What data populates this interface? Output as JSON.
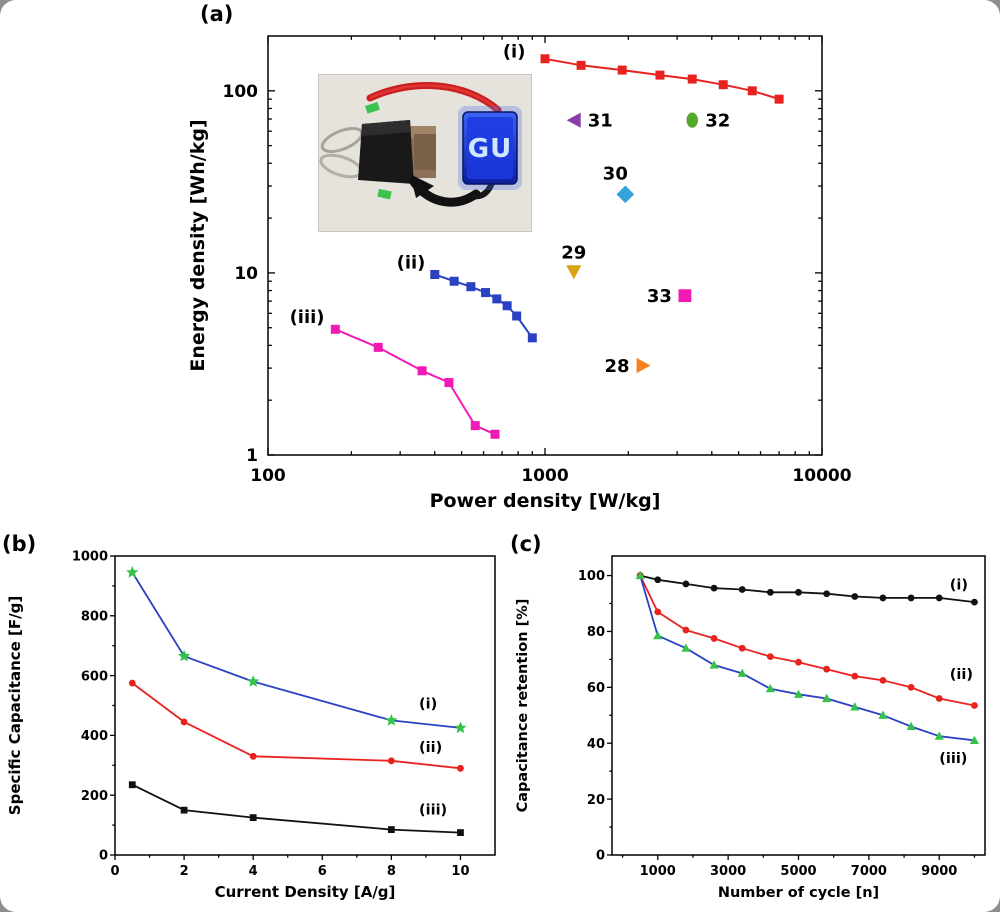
{
  "figure": {
    "background": "#ffffff",
    "panel_labels": {
      "a": "(a)",
      "b": "(b)",
      "c": "(c)"
    }
  },
  "inset": {
    "led_text": "GU"
  },
  "chart_data": [
    {
      "id": "a",
      "type": "line",
      "x_scale": "log",
      "y_scale": "log",
      "xlabel": "Power density [W/kg]",
      "ylabel": "Energy density [Wh/kg]",
      "xlim": [
        100,
        10000
      ],
      "ylim": [
        1,
        200
      ],
      "x_ticks": [
        100,
        1000,
        10000
      ],
      "y_ticks": [
        1,
        10,
        100
      ],
      "grid": false,
      "series": [
        {
          "name": "(i)",
          "color": "#e8231f",
          "marker": "square",
          "x": [
            1000,
            1350,
            1900,
            2600,
            3400,
            4400,
            5600,
            7000
          ],
          "y": [
            150,
            138,
            130,
            122,
            116,
            108,
            100,
            90
          ]
        },
        {
          "name": "(ii)",
          "color": "#2a41c2",
          "marker": "square",
          "x": [
            400,
            470,
            540,
            610,
            670,
            730,
            790,
            900
          ],
          "y": [
            9.8,
            9.0,
            8.4,
            7.8,
            7.2,
            6.6,
            5.8,
            4.4
          ]
        },
        {
          "name": "(iii)",
          "color": "#f21ab4",
          "marker": "square",
          "x": [
            175,
            250,
            360,
            450,
            560,
            660
          ],
          "y": [
            4.9,
            3.9,
            2.9,
            2.5,
            1.45,
            1.3
          ]
        }
      ],
      "points": [
        {
          "label": "31",
          "marker": "triangle-left",
          "color": "#8a3fa8",
          "x": 1280,
          "y": 69,
          "label_side": "right"
        },
        {
          "label": "32",
          "marker": "ellipse",
          "color": "#55a82a",
          "x": 3400,
          "y": 69,
          "label_side": "right"
        },
        {
          "label": "30",
          "marker": "diamond",
          "color": "#33a3dc",
          "x": 1950,
          "y": 27,
          "label_side": "above-left"
        },
        {
          "label": "29",
          "marker": "triangle-down",
          "color": "#d9a413",
          "x": 1270,
          "y": 10.2,
          "label_side": "above"
        },
        {
          "label": "33",
          "marker": "square",
          "color": "#f21ab4",
          "x": 3200,
          "y": 7.5,
          "label_side": "left"
        },
        {
          "label": "28",
          "marker": "triangle-right",
          "color": "#f5821f",
          "x": 2250,
          "y": 3.1,
          "label_side": "left"
        }
      ],
      "labels": [
        {
          "text": "(i)",
          "x": 850,
          "y": 152,
          "anchor": "end"
        },
        {
          "text": "(ii)",
          "x": 370,
          "y": 10.6,
          "anchor": "end"
        },
        {
          "text": "(iii)",
          "x": 160,
          "y": 5.3,
          "anchor": "end"
        }
      ]
    },
    {
      "id": "b",
      "type": "line",
      "x_scale": "linear",
      "y_scale": "linear",
      "xlabel": "Current Density [A/g]",
      "ylabel": "Specific Capacitance [F/g]",
      "xlim": [
        0,
        11
      ],
      "ylim": [
        0,
        1000
      ],
      "x_ticks": [
        0,
        2,
        4,
        6,
        8,
        10
      ],
      "y_ticks": [
        0,
        200,
        400,
        600,
        800,
        1000
      ],
      "grid": false,
      "series": [
        {
          "name": "(i)",
          "color": "#2a41c2",
          "marker": "star",
          "marker_color": "#35c24a",
          "x": [
            0.5,
            2,
            4,
            8,
            10
          ],
          "y": [
            945,
            665,
            580,
            450,
            425
          ]
        },
        {
          "name": "(ii)",
          "color": "#e8231f",
          "marker": "circle",
          "x": [
            0.5,
            2,
            4,
            8,
            10
          ],
          "y": [
            575,
            445,
            330,
            315,
            290
          ]
        },
        {
          "name": "(iii)",
          "color": "#111111",
          "marker": "square",
          "x": [
            0.5,
            2,
            4,
            8,
            10
          ],
          "y": [
            235,
            150,
            125,
            85,
            75
          ]
        }
      ],
      "labels": [
        {
          "text": "(i)",
          "x": 8.8,
          "y": 490,
          "anchor": "start"
        },
        {
          "text": "(ii)",
          "x": 8.8,
          "y": 345,
          "anchor": "start"
        },
        {
          "text": "(iii)",
          "x": 8.8,
          "y": 135,
          "anchor": "start"
        }
      ]
    },
    {
      "id": "c",
      "type": "line",
      "x_scale": "linear",
      "y_scale": "linear",
      "xlabel": "Number of cycle [n]",
      "ylabel": "Capacitance retention [%]",
      "xlim": [
        -300,
        10300
      ],
      "ylim": [
        0,
        107
      ],
      "x_ticks": [
        1000,
        3000,
        5000,
        7000,
        9000
      ],
      "y_ticks": [
        0,
        20,
        40,
        60,
        80,
        100
      ],
      "grid": false,
      "series": [
        {
          "name": "(i)",
          "color": "#111111",
          "marker": "circle",
          "x": [
            500,
            1000,
            1800,
            2600,
            3400,
            4200,
            5000,
            5800,
            6600,
            7400,
            8200,
            9000,
            10000
          ],
          "y": [
            100,
            98.5,
            97,
            95.5,
            95,
            94,
            94,
            93.5,
            92.5,
            92,
            92,
            92,
            90.5
          ]
        },
        {
          "name": "(ii)",
          "color": "#e8231f",
          "marker": "circle",
          "x": [
            500,
            1000,
            1800,
            2600,
            3400,
            4200,
            5000,
            5800,
            6600,
            7400,
            8200,
            9000,
            10000
          ],
          "y": [
            100,
            87,
            80.5,
            77.5,
            74,
            71,
            69,
            66.5,
            64,
            62.5,
            60,
            56,
            53.5
          ]
        },
        {
          "name": "(iii)",
          "color": "#2a41c2",
          "marker": "triangle-up",
          "marker_color": "#35c24a",
          "x": [
            500,
            1000,
            1800,
            2600,
            3400,
            4200,
            5000,
            5800,
            6600,
            7400,
            8200,
            9000,
            10000
          ],
          "y": [
            100,
            78.5,
            74,
            68,
            65,
            59.5,
            57.5,
            56,
            53,
            50,
            46,
            42.5,
            41
          ]
        }
      ],
      "labels": [
        {
          "text": "(i)",
          "x": 9300,
          "y": 95,
          "anchor": "start"
        },
        {
          "text": "(ii)",
          "x": 9300,
          "y": 63,
          "anchor": "start"
        },
        {
          "text": "(iii)",
          "x": 9000,
          "y": 33,
          "anchor": "start"
        }
      ]
    }
  ]
}
